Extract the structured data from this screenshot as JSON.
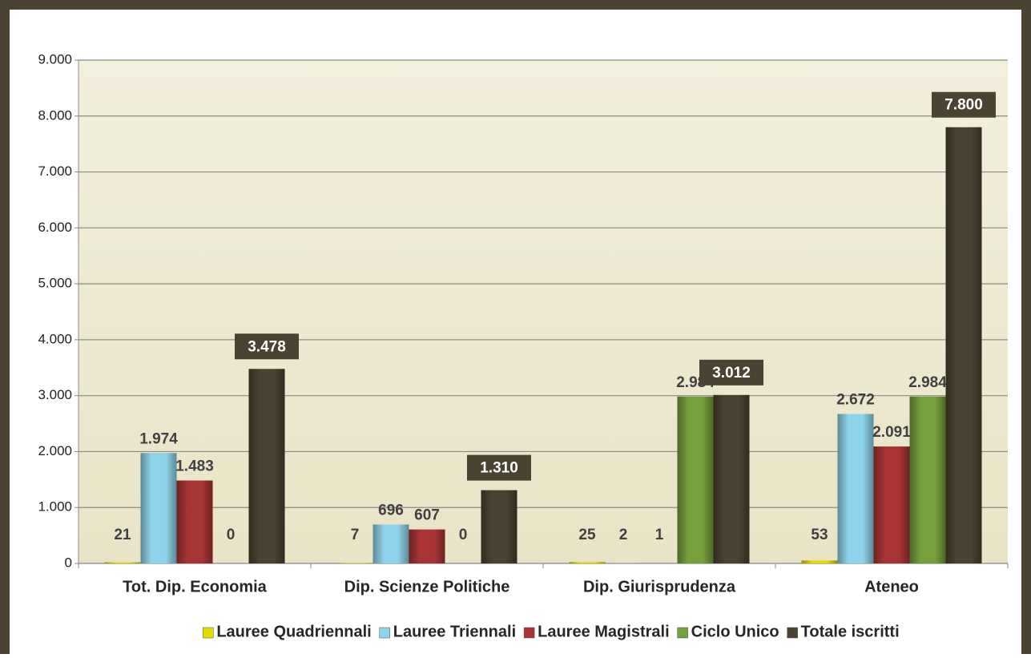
{
  "chart_data": {
    "type": "bar",
    "categories": [
      "Tot. Dip. Economia",
      "Dip. Scienze Politiche",
      "Dip. Giurisprudenza",
      "Ateneo"
    ],
    "series": [
      {
        "name": "Lauree Quadriennali",
        "color": "#e3dc00",
        "values": [
          21,
          7,
          25,
          53
        ],
        "value_labels": [
          "21",
          "7",
          "25",
          "53"
        ]
      },
      {
        "name": "Lauree Triennali",
        "color": "#8dd3ea",
        "values": [
          1974,
          696,
          2,
          2672
        ],
        "value_labels": [
          "1.974",
          "696",
          "2",
          "2.672"
        ]
      },
      {
        "name": "Lauree Magistrali",
        "color": "#a93434",
        "values": [
          1483,
          607,
          1,
          2091
        ],
        "value_labels": [
          "1.483",
          "607",
          "1",
          "2.091"
        ]
      },
      {
        "name": "Ciclo Unico",
        "color": "#76a03c",
        "values": [
          0,
          0,
          2984,
          2984
        ],
        "value_labels": [
          "0",
          "0",
          "2.984",
          "2.984"
        ]
      },
      {
        "name": "Totale iscritti",
        "color": "#4a4331",
        "values": [
          3478,
          1310,
          3012,
          7800
        ],
        "value_labels": [
          "3.478",
          "1.310",
          "3.012",
          "7.800"
        ]
      }
    ],
    "ylim": [
      0,
      9000
    ],
    "yticks": [
      0,
      {
        "value": 1000,
        "label": "1.000"
      },
      {
        "value": 2000,
        "label": "2.000"
      },
      {
        "value": 3000,
        "label": "3.000"
      },
      {
        "value": 4000,
        "label": "4.000"
      },
      {
        "value": 5000,
        "label": "5.000"
      },
      {
        "value": 6000,
        "label": "6.000"
      },
      {
        "value": 7000,
        "label": "7.000"
      },
      {
        "value": 8000,
        "label": "8.000"
      },
      {
        "value": 9000,
        "label": "9.000"
      }
    ],
    "grid": true,
    "legend": "bottom"
  }
}
